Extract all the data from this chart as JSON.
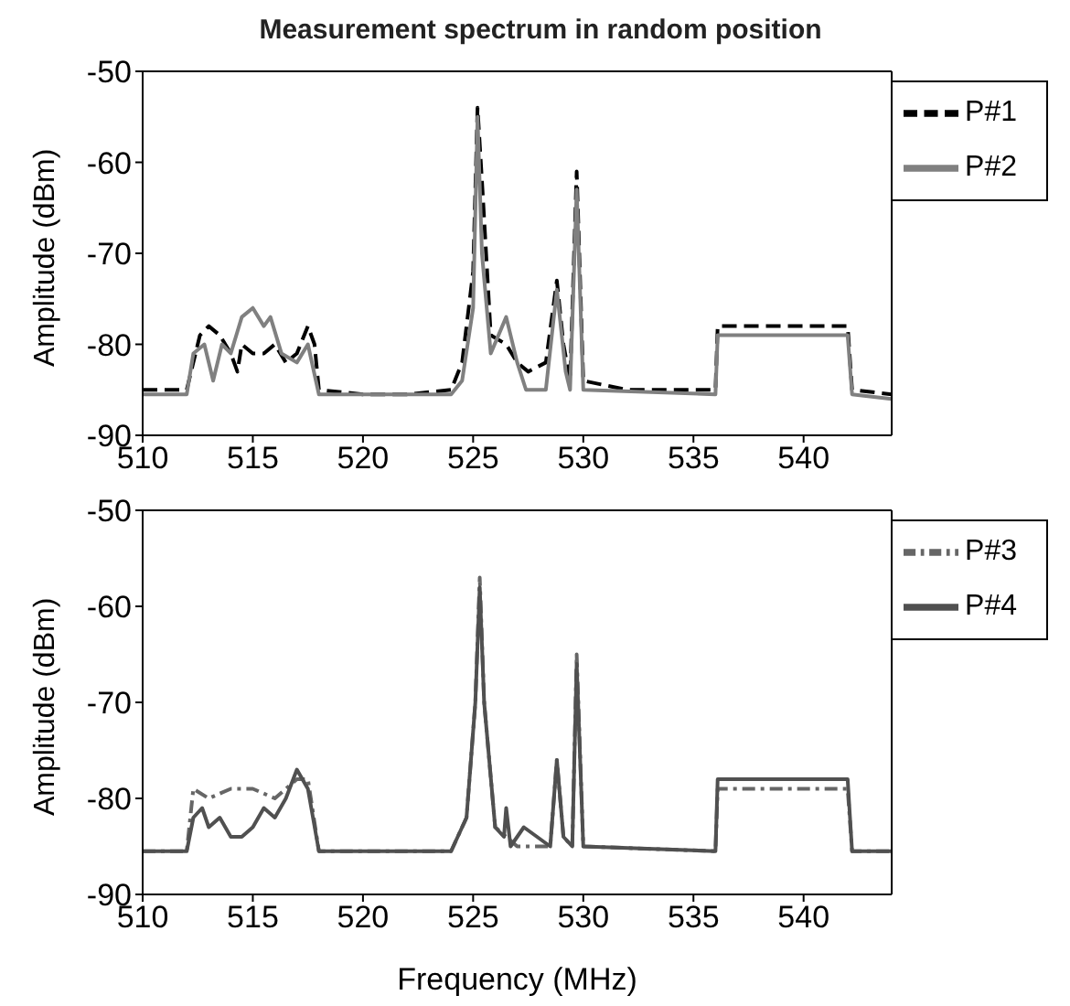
{
  "chart_data": [
    {
      "type": "line",
      "title": "Measurement spectrum in random position",
      "ylabel": "Amplitude (dBm)",
      "xlim": [
        510,
        544
      ],
      "xticks": [
        510,
        515,
        520,
        525,
        530,
        535,
        540
      ],
      "ylim": [
        -90,
        -50
      ],
      "yticks": [
        -90,
        -80,
        -70,
        -60,
        -50
      ],
      "legend": "top right",
      "grid": false,
      "marker": "none",
      "series": [
        {
          "name": "P#1",
          "color": "#000000",
          "line_style": "dashed",
          "x": [
            510,
            512,
            512.3,
            512.6,
            513,
            513.5,
            514,
            514.3,
            514.5,
            515,
            515.5,
            516,
            516.5,
            517,
            517.5,
            517.8,
            518,
            520,
            522,
            524,
            524.5,
            525,
            525.2,
            525.4,
            525.8,
            526.5,
            527,
            527.5,
            528.3,
            528.8,
            529.1,
            529.4,
            529.7,
            530,
            532,
            536,
            536.1,
            539,
            542,
            542.2,
            544
          ],
          "values": [
            -85,
            -85,
            -82,
            -79,
            -78,
            -79,
            -81,
            -83,
            -80,
            -81,
            -81,
            -80,
            -82,
            -81,
            -78,
            -80,
            -85,
            -85.5,
            -85.5,
            -85,
            -82,
            -72,
            -54,
            -62,
            -79,
            -80,
            -82,
            -83,
            -82,
            -73,
            -80,
            -84,
            -61,
            -84,
            -85,
            -85,
            -78,
            -78,
            -78,
            -85,
            -85.5
          ]
        },
        {
          "name": "P#2",
          "color": "#808080",
          "line_style": "solid",
          "x": [
            510,
            512,
            512.3,
            512.8,
            513.2,
            513.6,
            514,
            514.5,
            515,
            515.5,
            515.8,
            516.3,
            517,
            517.5,
            518,
            522,
            524,
            524.5,
            525,
            525.2,
            525.4,
            525.8,
            526.5,
            527,
            527.4,
            528.3,
            528.8,
            529.2,
            529.4,
            529.7,
            530,
            536,
            536.1,
            542,
            542.2,
            544
          ],
          "values": [
            -85.5,
            -85.5,
            -81,
            -80,
            -84,
            -80,
            -81,
            -77,
            -76,
            -78,
            -77,
            -81,
            -82,
            -80,
            -85.5,
            -85.5,
            -85.5,
            -84,
            -76,
            -55,
            -70,
            -81,
            -77,
            -82,
            -85,
            -85,
            -74,
            -83,
            -85,
            -63,
            -85,
            -85.5,
            -79,
            -79,
            -85.5,
            -86
          ]
        }
      ]
    },
    {
      "type": "line",
      "xlabel": "Frequency (MHz)",
      "ylabel": "Amplitude (dBm)",
      "xlim": [
        510,
        544
      ],
      "xticks": [
        510,
        515,
        520,
        525,
        530,
        535,
        540
      ],
      "ylim": [
        -90,
        -50
      ],
      "yticks": [
        -90,
        -80,
        -70,
        -60,
        -50
      ],
      "legend": "top right",
      "grid": false,
      "marker": "none",
      "series": [
        {
          "name": "P#3",
          "color": "#666666",
          "line_style": "dashdot",
          "x": [
            510,
            512,
            512.3,
            513,
            514,
            515,
            516,
            517,
            517.5,
            518,
            524,
            524.7,
            525.1,
            525.3,
            525.5,
            526,
            527,
            528.5,
            528.8,
            529.1,
            529.5,
            529.7,
            530,
            536,
            536.1,
            542,
            542.2,
            544
          ],
          "values": [
            -85.5,
            -85.5,
            -79,
            -80,
            -79,
            -79,
            -80,
            -78,
            -78,
            -85.5,
            -85.5,
            -82,
            -70,
            -57,
            -70,
            -83,
            -85,
            -85,
            -76,
            -84,
            -85,
            -65,
            -85,
            -85.5,
            -79,
            -79,
            -85.5,
            -85.5
          ]
        },
        {
          "name": "P#4",
          "color": "#505050",
          "line_style": "solid",
          "x": [
            510,
            512,
            512.3,
            512.7,
            513,
            513.5,
            514,
            514.5,
            515,
            515.5,
            516,
            516.5,
            517,
            517.5,
            518,
            524,
            524.7,
            525.1,
            525.3,
            525.5,
            526,
            526.4,
            526.5,
            526.7,
            527.3,
            528.5,
            528.8,
            529.1,
            529.5,
            529.7,
            530,
            536,
            536.1,
            542,
            542.2,
            544
          ],
          "values": [
            -85.5,
            -85.5,
            -82,
            -81,
            -83,
            -82,
            -84,
            -84,
            -83,
            -81,
            -82,
            -80,
            -77,
            -79,
            -85.5,
            -85.5,
            -82,
            -70,
            -58,
            -70,
            -83,
            -84,
            -81,
            -85,
            -83,
            -85,
            -76,
            -84,
            -85,
            -66,
            -85,
            -85.5,
            -78,
            -78,
            -85.5,
            -85.5
          ]
        }
      ]
    }
  ]
}
